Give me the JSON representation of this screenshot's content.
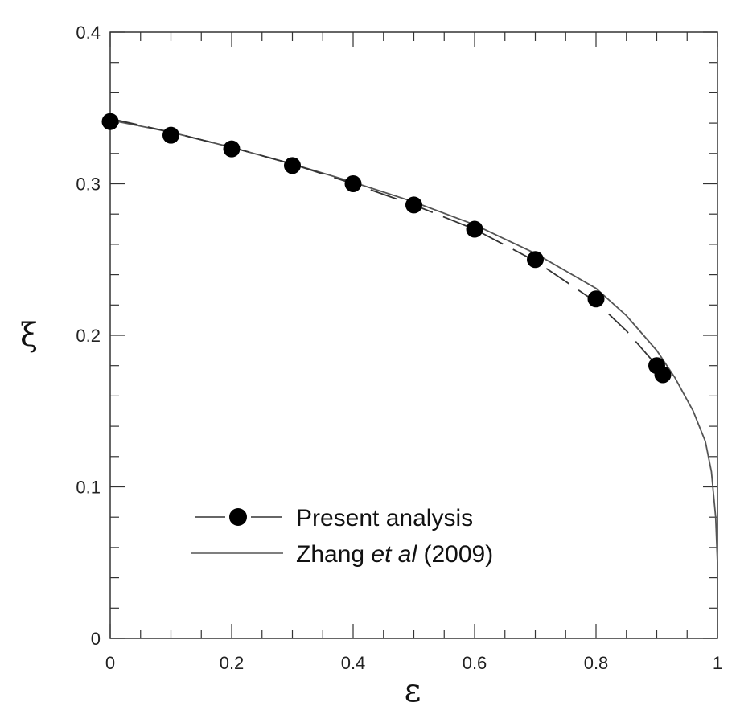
{
  "chart_data": {
    "type": "line",
    "xlabel": "ε",
    "ylabel": "ξ",
    "xlim": [
      0,
      1
    ],
    "ylim": [
      0,
      0.4
    ],
    "x_ticks": [
      "0",
      "0.2",
      "0.4",
      "0.6",
      "0.8",
      "1"
    ],
    "y_ticks": [
      "0",
      "0.1",
      "0.2",
      "0.3",
      "0.4"
    ],
    "x_tick_values": [
      0,
      0.2,
      0.4,
      0.6,
      0.8,
      1.0
    ],
    "y_tick_values": [
      0,
      0.1,
      0.2,
      0.3,
      0.4
    ],
    "legend_position": "bottom-left",
    "series": [
      {
        "name": "Present analysis",
        "style": "dashed-with-markers",
        "color": "#000000",
        "points": [
          [
            0.0,
            0.341
          ],
          [
            0.1,
            0.332
          ],
          [
            0.2,
            0.323
          ],
          [
            0.3,
            0.312
          ],
          [
            0.4,
            0.3
          ],
          [
            0.5,
            0.286
          ],
          [
            0.6,
            0.27
          ],
          [
            0.7,
            0.25
          ],
          [
            0.8,
            0.224
          ],
          [
            0.9,
            0.18
          ],
          [
            0.91,
            0.174
          ]
        ],
        "line": [
          [
            0.0,
            0.343
          ],
          [
            0.1,
            0.334
          ],
          [
            0.2,
            0.324
          ],
          [
            0.3,
            0.313
          ],
          [
            0.4,
            0.3
          ],
          [
            0.5,
            0.286
          ],
          [
            0.6,
            0.27
          ],
          [
            0.7,
            0.249
          ],
          [
            0.8,
            0.222
          ],
          [
            0.85,
            0.203
          ],
          [
            0.9,
            0.18
          ]
        ]
      },
      {
        "name_parts": [
          "Zhang ",
          "et al",
          " (2009)"
        ],
        "style": "solid",
        "color": "#555555",
        "points": [
          [
            0.0,
            0.342
          ],
          [
            0.1,
            0.334
          ],
          [
            0.2,
            0.324
          ],
          [
            0.3,
            0.313
          ],
          [
            0.4,
            0.301
          ],
          [
            0.5,
            0.288
          ],
          [
            0.6,
            0.273
          ],
          [
            0.7,
            0.254
          ],
          [
            0.8,
            0.231
          ],
          [
            0.85,
            0.213
          ],
          [
            0.9,
            0.19
          ],
          [
            0.93,
            0.172
          ],
          [
            0.96,
            0.15
          ],
          [
            0.98,
            0.13
          ],
          [
            0.99,
            0.11
          ],
          [
            0.997,
            0.08
          ],
          [
            1.0,
            0.05
          ],
          [
            1.0,
            0.0
          ]
        ]
      }
    ]
  }
}
